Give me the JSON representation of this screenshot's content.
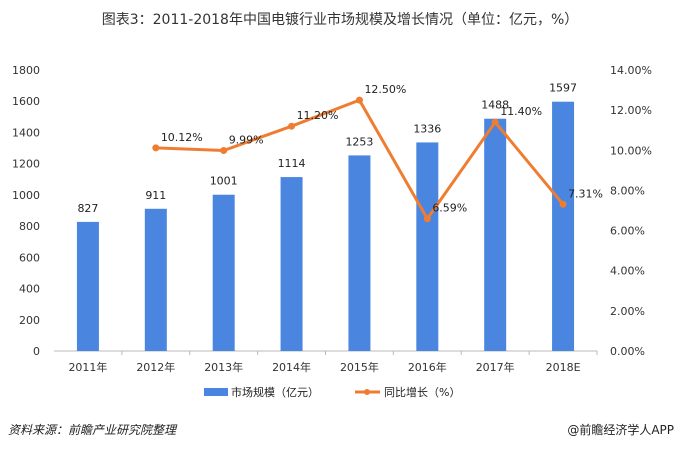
{
  "chart_data": {
    "type": "bar+line",
    "title": "图表3：2011-2018年中国电镀行业市场规模及增长情况（单位：亿元，%）",
    "categories": [
      "2011年",
      "2012年",
      "2013年",
      "2014年",
      "2015年",
      "2016年",
      "2017年",
      "2018E"
    ],
    "series": [
      {
        "name": "市场规模（亿元）",
        "type": "bar",
        "axis": "left",
        "color": "#4a86e0",
        "values": [
          827,
          911,
          1001,
          1114,
          1253,
          1336,
          1488,
          1597
        ],
        "labels": [
          "827",
          "911",
          "1001",
          "1114",
          "1253",
          "1336",
          "1488",
          "1597"
        ]
      },
      {
        "name": "同比增长（%）",
        "type": "line",
        "axis": "right",
        "color": "#ee7d31",
        "values": [
          null,
          10.12,
          9.99,
          11.2,
          12.5,
          6.59,
          11.4,
          7.31
        ],
        "labels": [
          "",
          "10.12%",
          "9.99%",
          "11.20%",
          "12.50%",
          "6.59%",
          "11.40%",
          "7.31%"
        ]
      }
    ],
    "y_left": {
      "range": [
        0,
        1800
      ],
      "ticks": [
        "0",
        "200",
        "400",
        "600",
        "800",
        "1000",
        "1200",
        "1400",
        "1600",
        "1800"
      ]
    },
    "y_right": {
      "range": [
        0,
        14
      ],
      "ticks": [
        "0.00%",
        "2.00%",
        "4.00%",
        "6.00%",
        "8.00%",
        "10.00%",
        "12.00%",
        "14.00%"
      ]
    },
    "grid": false,
    "legend": "bottom"
  },
  "footer": {
    "source": "资料来源：前瞻产业研究院整理",
    "credit": "@前瞻经济学人APP"
  }
}
